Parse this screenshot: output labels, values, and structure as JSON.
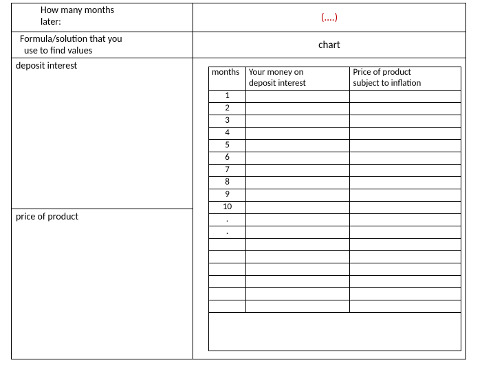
{
  "row1": {
    "left_line1": "How many months",
    "left_line2": "later:",
    "right": "(....)"
  },
  "row2": {
    "left_line1": "Formula/solution that you",
    "left_line2": "use to find values",
    "right": "chart"
  },
  "leftlower": {
    "deposit": "deposit interest",
    "price": "price of product"
  },
  "inner": {
    "headers": {
      "months": "months",
      "col2_line1": "Your money on",
      "col2_line2": "deposit interest",
      "col3_line1": "Price of product",
      "col3_line2": "subject to inflation"
    },
    "rows": [
      {
        "m": "1",
        "a": "",
        "b": ""
      },
      {
        "m": "2",
        "a": "",
        "b": ""
      },
      {
        "m": "3",
        "a": "",
        "b": ""
      },
      {
        "m": "4",
        "a": "",
        "b": ""
      },
      {
        "m": "5",
        "a": "",
        "b": ""
      },
      {
        "m": "6",
        "a": "",
        "b": ""
      },
      {
        "m": "7",
        "a": "",
        "b": ""
      },
      {
        "m": "8",
        "a": "",
        "b": ""
      },
      {
        "m": "9",
        "a": "",
        "b": ""
      },
      {
        "m": "10",
        "a": "",
        "b": ""
      },
      {
        "m": ".",
        "a": "",
        "b": ""
      },
      {
        "m": ".",
        "a": "",
        "b": ""
      },
      {
        "m": "",
        "a": "",
        "b": ""
      },
      {
        "m": "",
        "a": "",
        "b": ""
      },
      {
        "m": "",
        "a": "",
        "b": ""
      },
      {
        "m": "",
        "a": "",
        "b": ""
      },
      {
        "m": "",
        "a": "",
        "b": ""
      },
      {
        "m": "",
        "a": "",
        "b": ""
      }
    ]
  },
  "style": {
    "border_color": "#000000",
    "red_color": "#c00000",
    "font_family": "Calibri",
    "font_size_main": 14,
    "font_size_table": 13
  }
}
